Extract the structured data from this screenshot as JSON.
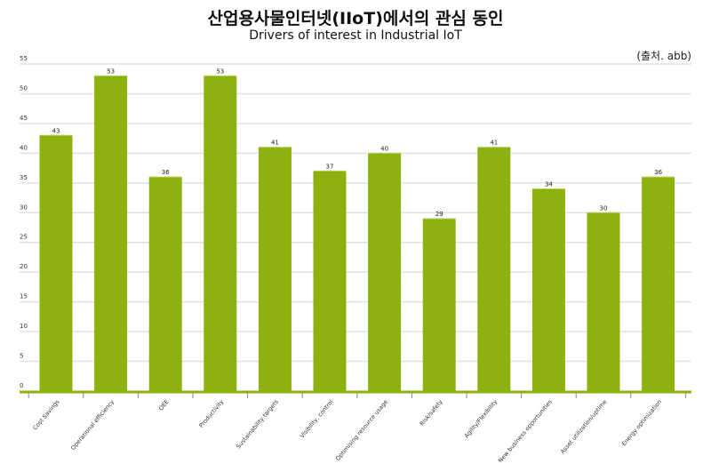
{
  "chart_data": {
    "type": "bar",
    "title": "산업용사물인터넷(IIoT)에서의 관심 동인",
    "subtitle": "Drivers of interest in Industrial IoT",
    "source": "(출처. abb)",
    "categories": [
      "Cost Savings",
      "Operational efficiency",
      "OEE",
      "Productivity",
      "Sustainability targets",
      "Visibility, control",
      "Optimising resource usage",
      "Risk/safety",
      "Agility/Flexibility",
      "New business opportunities",
      "Asset utilization/uptime",
      "Energy optimization"
    ],
    "values": [
      43,
      53,
      36,
      53,
      41,
      37,
      40,
      29,
      41,
      34,
      30,
      36
    ],
    "ylim": [
      0,
      55
    ],
    "yticks": [
      0,
      5,
      10,
      15,
      20,
      25,
      30,
      35,
      40,
      45,
      50,
      55
    ],
    "grid": true,
    "bar_color": "#8db10f",
    "xlabel": "",
    "ylabel": ""
  }
}
